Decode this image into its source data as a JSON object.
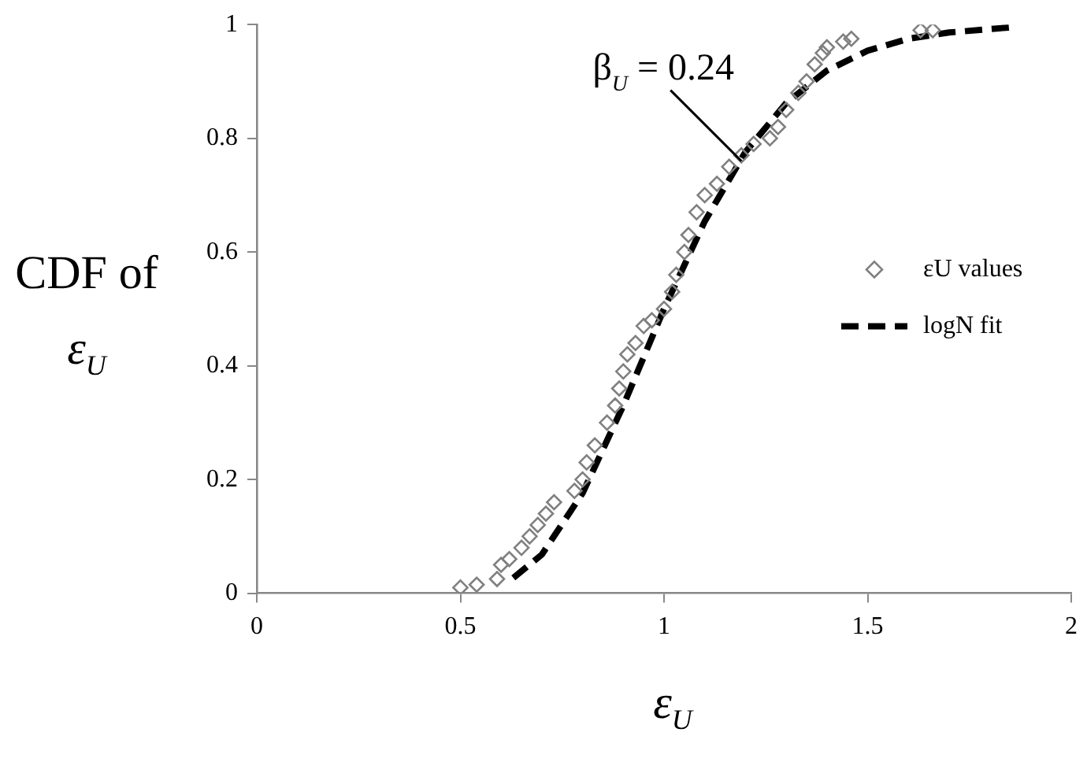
{
  "chart_data": {
    "type": "scatter",
    "xlabel": "ε$_{U}$",
    "ylabel": "CDF of ε$_{U}$",
    "xlim": [
      0,
      2
    ],
    "xticks": [
      0,
      0.5,
      1,
      1.5,
      2
    ],
    "ylim": [
      0,
      1
    ],
    "yticks": [
      0,
      0.2,
      0.4,
      0.6,
      0.8,
      1
    ],
    "grid": false,
    "legend": "right",
    "annotations": [
      {
        "text": "β$_{U}$ = 0.24",
        "x": 1.19,
        "y": 0.76
      }
    ],
    "series": [
      {
        "name": "εU values",
        "marker": "diamond",
        "color": "#808080",
        "x": [
          0.5,
          0.54,
          0.59,
          0.6,
          0.62,
          0.65,
          0.67,
          0.69,
          0.71,
          0.73,
          0.78,
          0.8,
          0.81,
          0.83,
          0.86,
          0.88,
          0.89,
          0.9,
          0.91,
          0.93,
          0.95,
          0.97,
          1.0,
          1.02,
          1.03,
          1.05,
          1.06,
          1.08,
          1.1,
          1.13,
          1.16,
          1.19,
          1.22,
          1.26,
          1.28,
          1.3,
          1.33,
          1.35,
          1.37,
          1.39,
          1.4,
          1.44,
          1.46,
          1.63,
          1.66
        ],
        "values": [
          0.01,
          0.015,
          0.025,
          0.05,
          0.06,
          0.08,
          0.1,
          0.12,
          0.14,
          0.16,
          0.18,
          0.2,
          0.23,
          0.26,
          0.3,
          0.33,
          0.36,
          0.39,
          0.42,
          0.44,
          0.47,
          0.48,
          0.5,
          0.53,
          0.56,
          0.6,
          0.63,
          0.67,
          0.7,
          0.72,
          0.75,
          0.77,
          0.79,
          0.8,
          0.82,
          0.85,
          0.88,
          0.9,
          0.93,
          0.95,
          0.96,
          0.97,
          0.975,
          0.99,
          0.99
        ]
      },
      {
        "name": "logN fit",
        "type": "line",
        "line_style": "dashed",
        "marker": "none",
        "color": "#000000",
        "x": [
          0.63,
          0.7,
          0.8,
          0.9,
          1.0,
          1.1,
          1.2,
          1.3,
          1.4,
          1.5,
          1.6,
          1.7,
          1.85
        ],
        "values": [
          0.027,
          0.068,
          0.176,
          0.33,
          0.5,
          0.654,
          0.776,
          0.862,
          0.919,
          0.954,
          0.975,
          0.986,
          0.995
        ]
      }
    ]
  }
}
